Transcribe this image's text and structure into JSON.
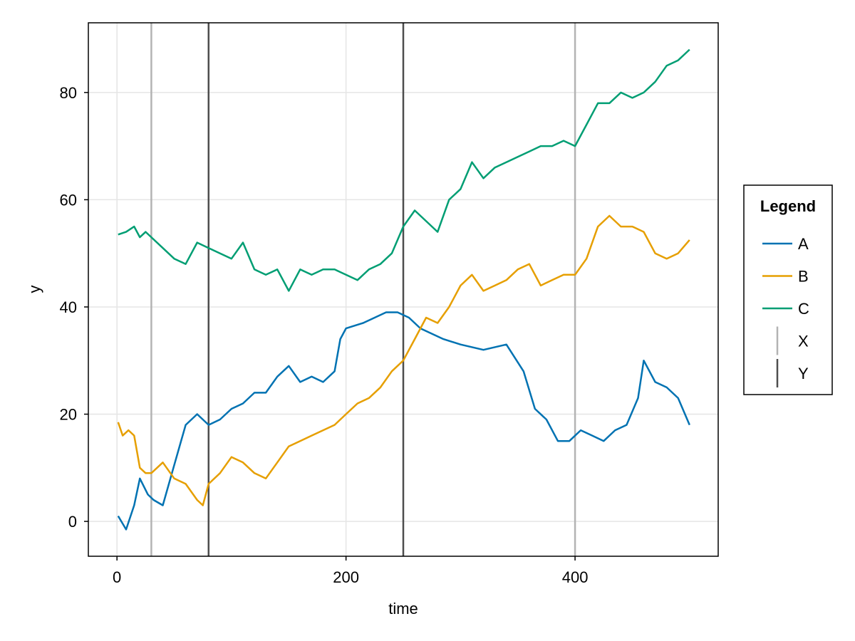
{
  "chart_data": {
    "type": "line",
    "xlabel": "time",
    "ylabel": "y",
    "xlim": [
      -25,
      525
    ],
    "ylim": [
      -6.5,
      93
    ],
    "xticks": [
      0,
      200,
      400
    ],
    "yticks": [
      0,
      20,
      40,
      60,
      80
    ],
    "grid": true,
    "legend": {
      "title": "Legend",
      "position": "right"
    },
    "series": [
      {
        "name": "A",
        "color": "#0072B2",
        "x": [
          1,
          8,
          15,
          20,
          27,
          32,
          40,
          48,
          60,
          70,
          80,
          90,
          100,
          110,
          120,
          130,
          140,
          150,
          160,
          170,
          180,
          190,
          195,
          200,
          215,
          225,
          235,
          245,
          255,
          265,
          275,
          285,
          300,
          320,
          340,
          355,
          365,
          375,
          385,
          395,
          405,
          415,
          425,
          435,
          445,
          455,
          460,
          470,
          480,
          490,
          500
        ],
        "y": [
          1,
          -1.5,
          3,
          8,
          5,
          4,
          3,
          9,
          18,
          20,
          18,
          19,
          21,
          22,
          24,
          24,
          27,
          29,
          26,
          27,
          26,
          28,
          34,
          36,
          37,
          38,
          39,
          39,
          38,
          36,
          35,
          34,
          33,
          32,
          33,
          28,
          21,
          19,
          15,
          15,
          17,
          16,
          15,
          17,
          18,
          23,
          30,
          26,
          25,
          23,
          18
        ]
      },
      {
        "name": "B",
        "color": "#E69F00",
        "x": [
          1,
          5,
          10,
          15,
          20,
          25,
          30,
          40,
          50,
          60,
          70,
          75,
          80,
          90,
          100,
          110,
          120,
          130,
          140,
          150,
          160,
          170,
          180,
          190,
          200,
          210,
          220,
          230,
          240,
          250,
          260,
          270,
          280,
          290,
          300,
          310,
          320,
          330,
          340,
          350,
          360,
          370,
          380,
          390,
          400,
          410,
          420,
          430,
          440,
          450,
          460,
          470,
          480,
          490,
          500
        ],
        "y": [
          18.5,
          16,
          17,
          16,
          10,
          9,
          9,
          11,
          8,
          7,
          4,
          3,
          7,
          9,
          12,
          11,
          9,
          8,
          11,
          14,
          15,
          16,
          17,
          18,
          20,
          22,
          23,
          25,
          28,
          30,
          34,
          38,
          37,
          40,
          44,
          46,
          43,
          44,
          45,
          47,
          48,
          44,
          45,
          46,
          46,
          49,
          55,
          57,
          55,
          55,
          54,
          50,
          49,
          50,
          52.5
        ]
      },
      {
        "name": "C",
        "color": "#009E73",
        "x": [
          1,
          8,
          15,
          20,
          25,
          30,
          40,
          50,
          60,
          70,
          80,
          90,
          100,
          110,
          120,
          130,
          140,
          150,
          160,
          170,
          180,
          190,
          200,
          210,
          220,
          230,
          240,
          250,
          260,
          270,
          280,
          290,
          300,
          310,
          320,
          330,
          340,
          350,
          360,
          370,
          380,
          390,
          400,
          405,
          410,
          420,
          430,
          440,
          450,
          460,
          470,
          480,
          490,
          500
        ],
        "y": [
          53.5,
          54,
          55,
          53,
          54,
          53,
          51,
          49,
          48,
          52,
          51,
          50,
          49,
          52,
          47,
          46,
          47,
          43,
          47,
          46,
          47,
          47,
          46,
          45,
          47,
          48,
          50,
          55,
          58,
          56,
          54,
          60,
          62,
          67,
          64,
          66,
          67,
          68,
          69,
          70,
          70,
          71,
          70,
          72,
          74,
          78,
          78,
          80,
          79,
          80,
          82,
          85,
          86,
          88
        ]
      }
    ],
    "vlines": [
      {
        "name": "X",
        "color": "#b3b3b3",
        "x": [
          30,
          400
        ]
      },
      {
        "name": "Y",
        "color": "#4d4d4d",
        "x": [
          80,
          250
        ]
      }
    ]
  }
}
